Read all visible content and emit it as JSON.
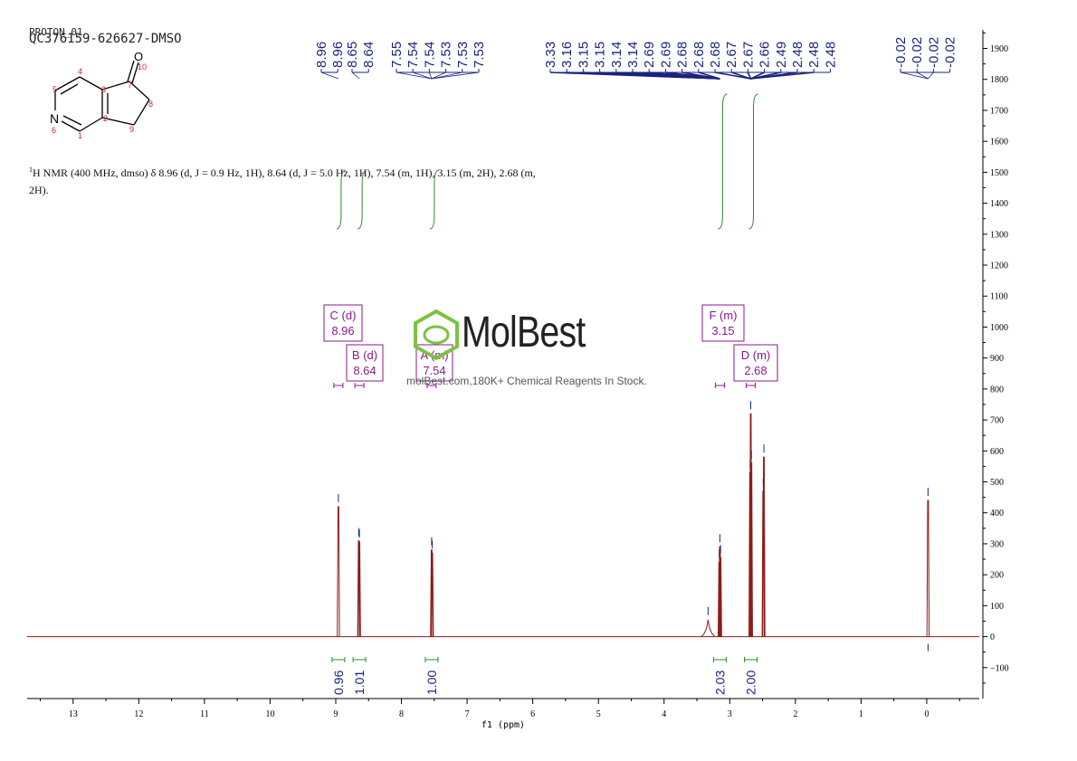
{
  "header": {
    "experiment": "PROTON_01",
    "sample": "QC376159-626627-DMSO"
  },
  "description": {
    "nucleus_sup": "1",
    "text": "H NMR (400 MHz, dmso) δ 8.96 (d, J = 0.9 Hz, 1H), 8.64 (d, J = 5.0 Hz, 1H), 7.54 (m, 1H), 3.15 (m, 2H), 2.68 (m, 2H)."
  },
  "structure": {
    "carbonyl_label": "O",
    "nitrogen_label": "N",
    "atom_numbers": [
      "1",
      "2",
      "3",
      "4",
      "5",
      "6",
      "7",
      "8",
      "9",
      "10"
    ]
  },
  "watermark": {
    "brand": "MolBest",
    "tagline": "molBest.com,180K+ Chemical Reagents In Stock."
  },
  "chart_data": {
    "type": "line",
    "xlabel": "f1 (ppm)",
    "xlim": [
      13.7,
      -0.8
    ],
    "ylim": [
      -200,
      1960
    ],
    "x_ticks": [
      13,
      12,
      11,
      10,
      9,
      8,
      7,
      6,
      5,
      4,
      3,
      2,
      1,
      0
    ],
    "y_ticks": [
      1900,
      1800,
      1700,
      1600,
      1500,
      1400,
      1300,
      1200,
      1100,
      1000,
      900,
      800,
      700,
      600,
      500,
      400,
      300,
      200,
      100,
      0,
      -100
    ],
    "grid": false,
    "colors": {
      "spectrum": "#8b1a1a",
      "peak_label": "#1a237e",
      "integral": "#2e8b2e",
      "multiplet": "#8b1a8b",
      "watermark": "#7cc242"
    },
    "peak_labels": [
      "8.96",
      "8.96",
      "8.65",
      "8.64",
      "7.55",
      "7.54",
      "7.54",
      "7.53",
      "7.53",
      "7.53",
      "3.33",
      "3.16",
      "3.15",
      "3.15",
      "3.14",
      "3.14",
      "2.69",
      "2.69",
      "2.68",
      "2.68",
      "2.68",
      "2.67",
      "2.67",
      "2.66",
      "2.49",
      "2.48",
      "2.48",
      "2.48",
      "-0.02",
      "-0.02",
      "-0.02",
      "-0.02"
    ],
    "peaks": [
      {
        "ppm": 8.96,
        "height": 420
      },
      {
        "ppm": 8.65,
        "height": 310
      },
      {
        "ppm": 8.64,
        "height": 305
      },
      {
        "ppm": 7.54,
        "height": 280
      },
      {
        "ppm": 7.53,
        "height": 270
      },
      {
        "ppm": 3.33,
        "height": 55
      },
      {
        "ppm": 3.16,
        "height": 240
      },
      {
        "ppm": 3.15,
        "height": 290
      },
      {
        "ppm": 3.14,
        "height": 255
      },
      {
        "ppm": 2.69,
        "height": 530
      },
      {
        "ppm": 2.68,
        "height": 720
      },
      {
        "ppm": 2.67,
        "height": 560
      },
      {
        "ppm": 2.49,
        "height": 470
      },
      {
        "ppm": 2.48,
        "height": 580
      },
      {
        "ppm": -0.02,
        "height": 440
      }
    ],
    "integrals": [
      {
        "ppm": 8.96,
        "value": "0.96"
      },
      {
        "ppm": 8.64,
        "value": "1.01"
      },
      {
        "ppm": 7.54,
        "value": "1.00"
      },
      {
        "ppm": 3.15,
        "value": "2.03"
      },
      {
        "ppm": 2.68,
        "value": "2.00"
      }
    ],
    "multiplets": [
      {
        "id": "C",
        "type": "d",
        "shift": "8.96"
      },
      {
        "id": "B",
        "type": "d",
        "shift": "8.64"
      },
      {
        "id": "A",
        "type": "m",
        "shift": "7.54"
      },
      {
        "id": "F",
        "type": "m",
        "shift": "3.15"
      },
      {
        "id": "D",
        "type": "m",
        "shift": "2.68"
      }
    ]
  }
}
